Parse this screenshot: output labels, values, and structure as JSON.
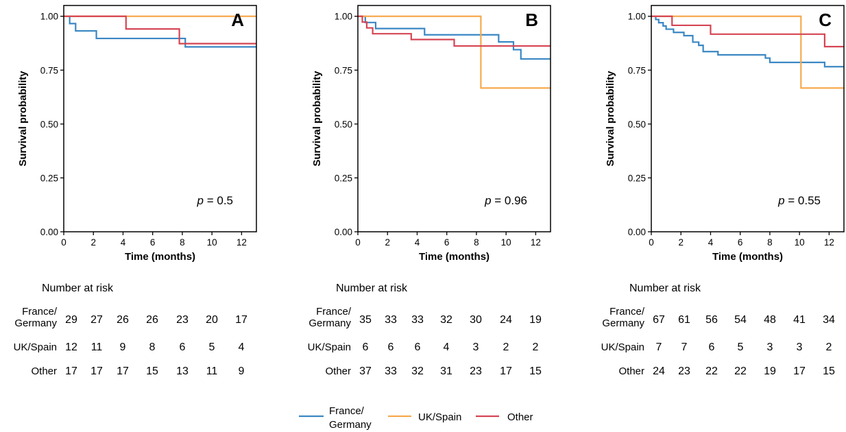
{
  "chart_data": [
    {
      "type": "line",
      "panel_label": "A",
      "ylabel": "Survival probability",
      "xlabel": "Time (months)",
      "xlim": [
        0,
        13
      ],
      "ylim": [
        0,
        1.05
      ],
      "x_ticks": [
        "0",
        "2",
        "4",
        "6",
        "8",
        "10",
        "12"
      ],
      "y_ticks": [
        "0.00",
        "0.25",
        "0.50",
        "0.75",
        "1.00"
      ],
      "p_prefix": "p",
      "p_value": " = 0.5",
      "series": [
        {
          "name": "France/ Germany",
          "color": "#3a87c3",
          "x": [
            0,
            0.4,
            0.8,
            2.2,
            8.2,
            13
          ],
          "y": [
            1.0,
            0.966,
            0.932,
            0.897,
            0.858,
            0.858
          ]
        },
        {
          "name": "UK/Spain",
          "color": "#f6a94c",
          "x": [
            0,
            13
          ],
          "y": [
            1.0,
            1.0
          ]
        },
        {
          "name": "Other",
          "color": "#d64453",
          "x": [
            0,
            4.2,
            7.8,
            13
          ],
          "y": [
            1.0,
            0.941,
            0.873,
            0.873
          ]
        }
      ],
      "risk_table": {
        "title": "Number at risk",
        "rows": [
          {
            "name_line1": "France/",
            "name_line2": "Germany",
            "values": [
              "29",
              "27",
              "26",
              "26",
              "23",
              "20",
              "17"
            ]
          },
          {
            "name_line1": "UK/Spain",
            "name_line2": "",
            "values": [
              "12",
              "11",
              "9",
              "8",
              "6",
              "5",
              "4"
            ]
          },
          {
            "name_line1": "Other",
            "name_line2": "",
            "values": [
              "17",
              "17",
              "17",
              "15",
              "13",
              "11",
              "9"
            ]
          }
        ]
      }
    },
    {
      "type": "line",
      "panel_label": "B",
      "ylabel": "Survival probability",
      "xlabel": "Time (months)",
      "xlim": [
        0,
        13
      ],
      "ylim": [
        0,
        1.05
      ],
      "x_ticks": [
        "0",
        "2",
        "4",
        "6",
        "8",
        "10",
        "12"
      ],
      "y_ticks": [
        "0.00",
        "0.25",
        "0.50",
        "0.75",
        "1.00"
      ],
      "p_prefix": "p",
      "p_value": " = 0.96",
      "series": [
        {
          "name": "France/ Germany",
          "color": "#3a87c3",
          "x": [
            0,
            0.5,
            0.8,
            1.2,
            4.5,
            9.5,
            10.5,
            11.0,
            13
          ],
          "y": [
            1.0,
            0.971,
            0.971,
            0.943,
            0.914,
            0.881,
            0.845,
            0.802,
            0.802
          ]
        },
        {
          "name": "UK/Spain",
          "color": "#f6a94c",
          "x": [
            0,
            8.3,
            13
          ],
          "y": [
            1.0,
            0.667,
            0.667
          ]
        },
        {
          "name": "Other",
          "color": "#d64453",
          "x": [
            0,
            0.3,
            0.6,
            1.0,
            3.6,
            6.5,
            13
          ],
          "y": [
            1.0,
            0.973,
            0.946,
            0.919,
            0.892,
            0.862,
            0.862
          ]
        }
      ],
      "risk_table": {
        "title": "Number at risk",
        "rows": [
          {
            "name_line1": "France/",
            "name_line2": "Germany",
            "values": [
              "35",
              "33",
              "33",
              "32",
              "30",
              "24",
              "19"
            ]
          },
          {
            "name_line1": "UK/Spain",
            "name_line2": "",
            "values": [
              "6",
              "6",
              "6",
              "4",
              "3",
              "2",
              "2"
            ]
          },
          {
            "name_line1": "Other",
            "name_line2": "",
            "values": [
              "37",
              "33",
              "32",
              "31",
              "23",
              "17",
              "15"
            ]
          }
        ]
      }
    },
    {
      "type": "line",
      "panel_label": "C",
      "ylabel": "Survival probability",
      "xlabel": "Time (months)",
      "xlim": [
        0,
        13
      ],
      "ylim": [
        0,
        1.05
      ],
      "x_ticks": [
        "0",
        "2",
        "4",
        "6",
        "8",
        "10",
        "12"
      ],
      "y_ticks": [
        "0.00",
        "0.25",
        "0.50",
        "0.75",
        "1.00"
      ],
      "p_prefix": "p",
      "p_value": " = 0.55",
      "series": [
        {
          "name": "France/ Germany",
          "color": "#3a87c3",
          "x": [
            0,
            0.3,
            0.5,
            0.8,
            1.0,
            1.5,
            2.2,
            2.8,
            3.2,
            3.5,
            4.5,
            7.7,
            8.0,
            11.7,
            13
          ],
          "y": [
            1.0,
            0.985,
            0.97,
            0.955,
            0.94,
            0.925,
            0.91,
            0.88,
            0.865,
            0.836,
            0.821,
            0.806,
            0.786,
            0.766,
            0.766
          ]
        },
        {
          "name": "UK/Spain",
          "color": "#f6a94c",
          "x": [
            0,
            10.1,
            13
          ],
          "y": [
            1.0,
            0.667,
            0.667
          ]
        },
        {
          "name": "Other",
          "color": "#d64453",
          "x": [
            0,
            1.4,
            4.0,
            11.7,
            13
          ],
          "y": [
            1.0,
            0.958,
            0.917,
            0.859,
            0.859
          ]
        }
      ],
      "risk_table": {
        "title": "Number at risk",
        "rows": [
          {
            "name_line1": "France/",
            "name_line2": "Germany",
            "values": [
              "67",
              "61",
              "56",
              "54",
              "48",
              "41",
              "34"
            ]
          },
          {
            "name_line1": "UK/Spain",
            "name_line2": "",
            "values": [
              "7",
              "7",
              "6",
              "5",
              "3",
              "3",
              "2"
            ]
          },
          {
            "name_line1": "Other",
            "name_line2": "",
            "values": [
              "24",
              "23",
              "22",
              "22",
              "19",
              "17",
              "15"
            ]
          }
        ]
      }
    }
  ],
  "legend": {
    "items": [
      {
        "line1": "France/",
        "line2": "Germany",
        "color": "#3a87c3"
      },
      {
        "line1": "UK/Spain",
        "line2": "",
        "color": "#f6a94c"
      },
      {
        "line1": "Other",
        "line2": "",
        "color": "#d64453"
      }
    ]
  }
}
